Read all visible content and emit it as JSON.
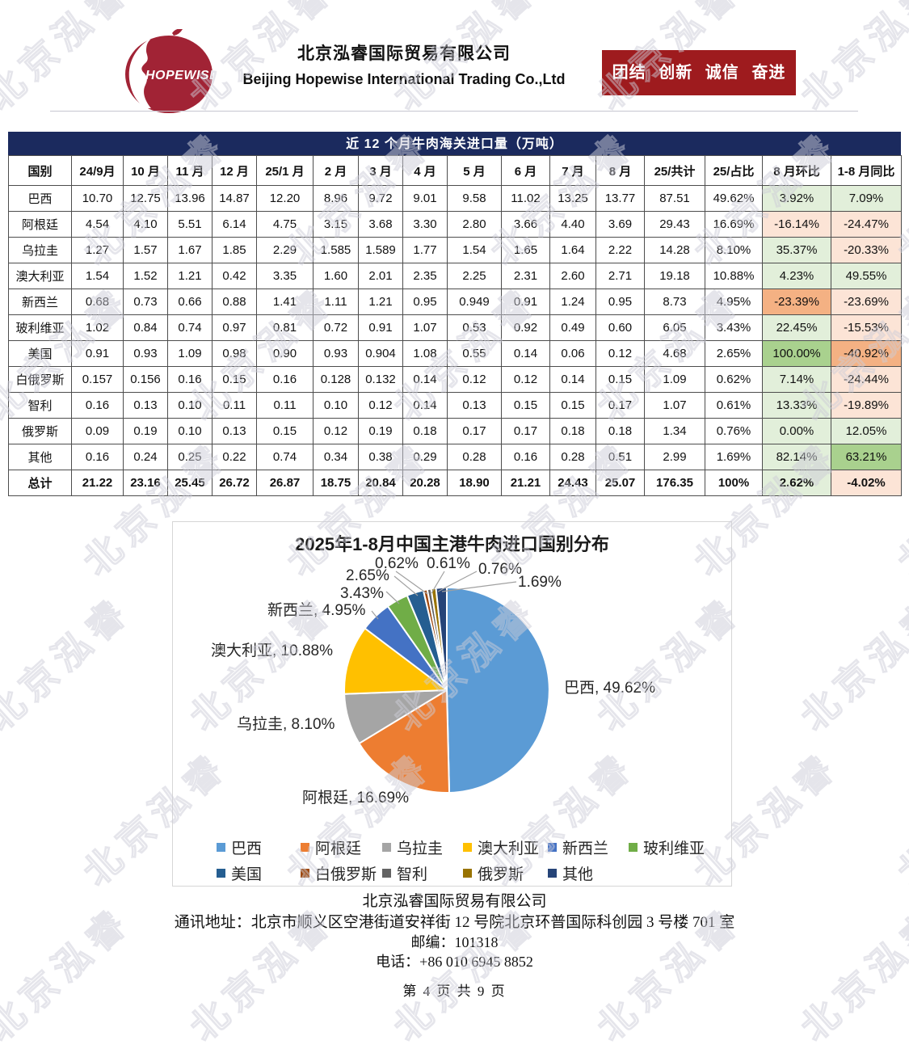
{
  "header": {
    "logo_text": "HOPEWISE",
    "company_name_cn": "北京泓睿国际贸易有限公司",
    "company_name_en": "Beijing Hopewise International Trading Co.,Ltd",
    "slogan": "团结 创新 诚信 奋进"
  },
  "watermark": {
    "text": "北京泓睿"
  },
  "table": {
    "title": "近 12 个月牛肉海关进口量（万吨）",
    "columns": [
      "国别",
      "24/9月",
      "10 月",
      "11 月",
      "12 月",
      "25/1 月",
      "2 月",
      "3 月",
      "4 月",
      "5 月",
      "6 月",
      "7 月",
      "8 月",
      "25/共计",
      "25/占比",
      "8 月环比",
      "1-8 月同比"
    ],
    "rows": [
      {
        "name": "巴西",
        "values": [
          "10.70",
          "12.75",
          "13.96",
          "14.87",
          "12.20",
          "8.96",
          "9.72",
          "9.01",
          "9.58",
          "11.02",
          "13.25",
          "13.77"
        ],
        "total": "87.51",
        "share": "49.62%",
        "mom": "3.92%",
        "mom_cls": "g1",
        "yoy": "7.09%",
        "yoy_cls": "g1",
        "bold": false
      },
      {
        "name": "阿根廷",
        "values": [
          "4.54",
          "4.10",
          "5.51",
          "6.14",
          "4.75",
          "3.15",
          "3.68",
          "3.30",
          "2.80",
          "3.66",
          "4.40",
          "3.69"
        ],
        "total": "29.43",
        "share": "16.69%",
        "mom": "-16.14%",
        "mom_cls": "o1",
        "yoy": "-24.47%",
        "yoy_cls": "o1",
        "bold": false
      },
      {
        "name": "乌拉圭",
        "values": [
          "1.27",
          "1.57",
          "1.67",
          "1.85",
          "2.29",
          "1.585",
          "1.589",
          "1.77",
          "1.54",
          "1.65",
          "1.64",
          "2.22"
        ],
        "total": "14.28",
        "share": "8.10%",
        "mom": "35.37%",
        "mom_cls": "g1",
        "yoy": "-20.33%",
        "yoy_cls": "o1",
        "bold": false
      },
      {
        "name": "澳大利亚",
        "values": [
          "1.54",
          "1.52",
          "1.21",
          "0.42",
          "3.35",
          "1.60",
          "2.01",
          "2.35",
          "2.25",
          "2.31",
          "2.60",
          "2.71"
        ],
        "total": "19.18",
        "share": "10.88%",
        "mom": "4.23%",
        "mom_cls": "g1",
        "yoy": "49.55%",
        "yoy_cls": "g1",
        "bold": false
      },
      {
        "name": "新西兰",
        "values": [
          "0.68",
          "0.73",
          "0.66",
          "0.88",
          "1.41",
          "1.11",
          "1.21",
          "0.95",
          "0.949",
          "0.91",
          "1.24",
          "0.95"
        ],
        "total": "8.73",
        "share": "4.95%",
        "mom": "-23.39%",
        "mom_cls": "o2",
        "yoy": "-23.69%",
        "yoy_cls": "o1",
        "bold": false
      },
      {
        "name": "玻利维亚",
        "values": [
          "1.02",
          "0.84",
          "0.74",
          "0.97",
          "0.81",
          "0.72",
          "0.91",
          "1.07",
          "0.53",
          "0.92",
          "0.49",
          "0.60"
        ],
        "total": "6.05",
        "share": "3.43%",
        "mom": "22.45%",
        "mom_cls": "g1",
        "yoy": "-15.53%",
        "yoy_cls": "o1",
        "bold": false
      },
      {
        "name": "美国",
        "values": [
          "0.91",
          "0.93",
          "1.09",
          "0.98",
          "0.90",
          "0.93",
          "0.904",
          "1.08",
          "0.55",
          "0.14",
          "0.06",
          "0.12"
        ],
        "total": "4.68",
        "share": "2.65%",
        "mom": "100.00%",
        "mom_cls": "g2",
        "yoy": "-40.92%",
        "yoy_cls": "o2",
        "bold": false
      },
      {
        "name": "白俄罗斯",
        "values": [
          "0.157",
          "0.156",
          "0.16",
          "0.15",
          "0.16",
          "0.128",
          "0.132",
          "0.14",
          "0.12",
          "0.12",
          "0.14",
          "0.15"
        ],
        "total": "1.09",
        "share": "0.62%",
        "mom": "7.14%",
        "mom_cls": "g1",
        "yoy": "-24.44%",
        "yoy_cls": "o1",
        "bold": false
      },
      {
        "name": "智利",
        "values": [
          "0.16",
          "0.13",
          "0.10",
          "0.11",
          "0.11",
          "0.10",
          "0.12",
          "0.14",
          "0.13",
          "0.15",
          "0.15",
          "0.17"
        ],
        "total": "1.07",
        "share": "0.61%",
        "mom": "13.33%",
        "mom_cls": "g1",
        "yoy": "-19.89%",
        "yoy_cls": "o1",
        "bold": false
      },
      {
        "name": "俄罗斯",
        "values": [
          "0.09",
          "0.19",
          "0.10",
          "0.13",
          "0.15",
          "0.12",
          "0.19",
          "0.18",
          "0.17",
          "0.17",
          "0.18",
          "0.18"
        ],
        "total": "1.34",
        "share": "0.76%",
        "mom": "0.00%",
        "mom_cls": "g1",
        "yoy": "12.05%",
        "yoy_cls": "g1",
        "bold": false
      },
      {
        "name": "其他",
        "values": [
          "0.16",
          "0.24",
          "0.25",
          "0.22",
          "0.74",
          "0.34",
          "0.38",
          "0.29",
          "0.28",
          "0.16",
          "0.28",
          "0.51"
        ],
        "total": "2.99",
        "share": "1.69%",
        "mom": "82.14%",
        "mom_cls": "g1",
        "yoy": "63.21%",
        "yoy_cls": "g2",
        "bold": false
      },
      {
        "name": "总计",
        "values": [
          "21.22",
          "23.16",
          "25.45",
          "26.72",
          "26.87",
          "18.75",
          "20.84",
          "20.28",
          "18.90",
          "21.21",
          "24.43",
          "25.07"
        ],
        "total": "176.35",
        "share": "100%",
        "mom": "2.62%",
        "mom_cls": "g1",
        "yoy": "-4.02%",
        "yoy_cls": "o1",
        "bold": true
      }
    ]
  },
  "chart_data": {
    "type": "pie",
    "title": "2025年1-8月中国主港牛肉进口国别分布",
    "legend_position": "bottom",
    "start_angle_deg": 0,
    "segments": [
      {
        "name": "巴西",
        "value": 49.62,
        "color": "#5B9BD5",
        "label": "巴西, 49.62%"
      },
      {
        "name": "阿根廷",
        "value": 16.69,
        "color": "#ED7D31",
        "label": "阿根廷, 16.69%"
      },
      {
        "name": "乌拉圭",
        "value": 8.1,
        "color": "#A5A5A5",
        "label": "乌拉圭, 8.10%"
      },
      {
        "name": "澳大利亚",
        "value": 10.88,
        "color": "#FFC000",
        "label": "澳大利亚, 10.88%"
      },
      {
        "name": "新西兰",
        "value": 4.95,
        "color": "#4472C4",
        "label": "新西兰, 4.95%"
      },
      {
        "name": "玻利维亚",
        "value": 3.43,
        "color": "#70AD47",
        "label": "3.43%"
      },
      {
        "name": "美国",
        "value": 2.65,
        "color": "#255E91",
        "label": "2.65%"
      },
      {
        "name": "白俄罗斯",
        "value": 0.62,
        "color": "#9E480E",
        "label": "0.62%"
      },
      {
        "name": "智利",
        "value": 0.61,
        "color": "#636363",
        "label": "0.61%"
      },
      {
        "name": "俄罗斯",
        "value": 0.76,
        "color": "#997300",
        "label": "0.76%"
      },
      {
        "name": "其他",
        "value": 1.69,
        "color": "#264478",
        "label": "1.69%"
      }
    ]
  },
  "colors": {
    "navy": "#1B2A5E",
    "banner_red": "#9E1B1E",
    "logo_red": "#A12335",
    "green_light": "#E2EFDA",
    "green_medium": "#A9D18E",
    "orange_light": "#FCE4D6",
    "orange_medium": "#F4B183"
  },
  "footer": {
    "company": "北京泓睿国际贸易有限公司",
    "address": "通讯地址：北京市顺义区空港街道安祥街 12 号院北京环普国际科创园 3 号楼 701 室",
    "zip": "邮编：101318",
    "phone": "电话：+86 010 6945 8852",
    "page": "第 4 页 共 9 页"
  }
}
